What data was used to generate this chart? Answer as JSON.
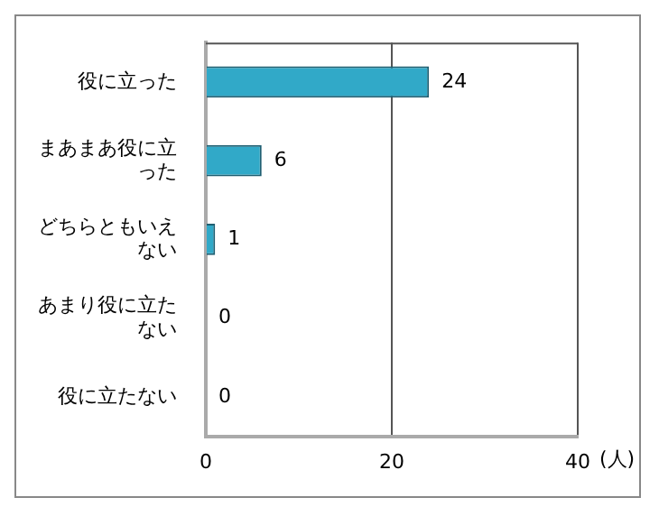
{
  "chart_data": {
    "type": "bar",
    "orientation": "horizontal",
    "categories": [
      "役に立った",
      "まあまあ役に立った",
      "どちらともいえない",
      "あまり役に立たない",
      "役に立たない"
    ],
    "values": [
      24,
      6,
      1,
      0,
      0
    ],
    "color": "#31a9c8",
    "xlim": [
      0,
      40
    ],
    "xticks": [
      0,
      20,
      40
    ],
    "xlabel": "(人)",
    "grid": "x",
    "data_labels": true,
    "legend": false
  }
}
